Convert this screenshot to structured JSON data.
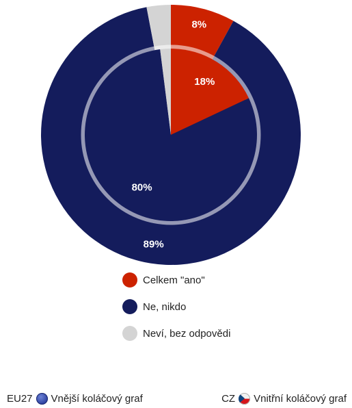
{
  "chart_data": {
    "type": "pie",
    "categories": [
      "Celkem \"ano\"",
      "Ne, nikdo",
      "Neví, bez odpovědi"
    ],
    "colors": [
      "#cc2200",
      "#141c5c",
      "#d4d4d4"
    ],
    "series": [
      {
        "name": "Vnější koláčový graf",
        "code": "EU27",
        "values": [
          8,
          89,
          3
        ]
      },
      {
        "name": "Vnitřní koláčový graf",
        "code": "CZ",
        "values": [
          18,
          80,
          2
        ]
      }
    ],
    "data_labels": {
      "outer": [
        "8%",
        "89%",
        ""
      ],
      "inner": [
        "18%",
        "80%",
        ""
      ]
    },
    "legend": "below"
  },
  "legend": {
    "items": [
      {
        "label": "Celkem \"ano\"",
        "color": "#cc2200"
      },
      {
        "label": "Ne, nikdo",
        "color": "#141c5c"
      },
      {
        "label": "Neví, bez odpovědi",
        "color": "#d4d4d4"
      }
    ]
  },
  "footer": {
    "outer": {
      "code": "EU27",
      "label": "Vnější koláčový graf",
      "flag_icon": "eu-flag-icon"
    },
    "inner": {
      "code": "CZ",
      "label": "Vnitřní koláčový graf",
      "flag_icon": "cz-flag-icon"
    }
  }
}
